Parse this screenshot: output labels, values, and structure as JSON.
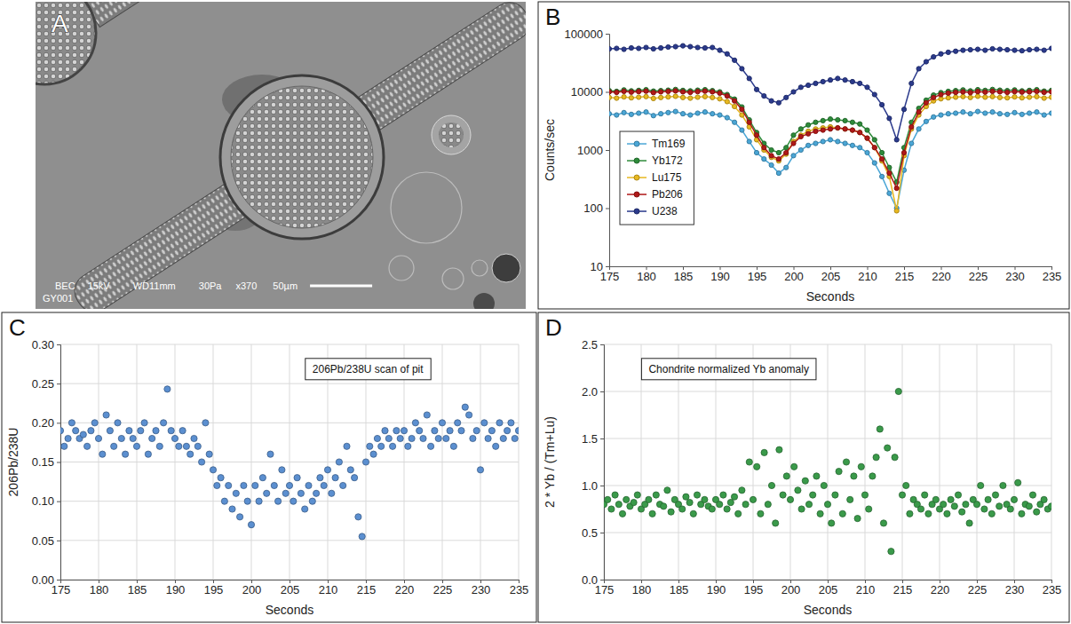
{
  "chart_data": [
    {
      "type": "image",
      "label": "A",
      "annotations": [
        "BEC",
        "15kV",
        "WD11mm",
        "30Pa",
        "x370",
        "50µm"
      ],
      "sample": "GY001"
    },
    {
      "type": "line",
      "label": "B",
      "log": "y",
      "grid": false,
      "legend": "left",
      "marker": "circle",
      "xlabel": "Seconds",
      "ylabel": "Counts/sec",
      "xlim": [
        175,
        235
      ],
      "xticks": [
        175,
        180,
        185,
        190,
        195,
        200,
        205,
        210,
        215,
        220,
        225,
        230,
        235
      ],
      "ylim": [
        10,
        100000
      ],
      "yticks": [
        10,
        100,
        1000,
        10000,
        100000
      ],
      "x": [
        175,
        176,
        177,
        178,
        179,
        180,
        181,
        182,
        183,
        184,
        185,
        186,
        187,
        188,
        189,
        190,
        191,
        192,
        193,
        194,
        195,
        196,
        197,
        198,
        199,
        200,
        201,
        202,
        203,
        204,
        205,
        206,
        207,
        208,
        209,
        210,
        211,
        212,
        213,
        214,
        215,
        216,
        217,
        218,
        219,
        220,
        221,
        222,
        223,
        224,
        225,
        226,
        227,
        228,
        229,
        230,
        231,
        232,
        233,
        234,
        235
      ],
      "series": [
        {
          "name": "Tm169",
          "color": "#4aa6d6",
          "values": [
            4200,
            4000,
            4400,
            4100,
            4300,
            4500,
            3900,
            4200,
            4400,
            4600,
            4200,
            4000,
            4300,
            4500,
            4200,
            4000,
            3600,
            3000,
            2200,
            1400,
            900,
            700,
            550,
            400,
            500,
            800,
            1000,
            1200,
            1300,
            1400,
            1500,
            1400,
            1300,
            1200,
            1100,
            900,
            600,
            350,
            180,
            100,
            450,
            1300,
            2300,
            3100,
            3700,
            4000,
            4200,
            4300,
            4500,
            4200,
            4600,
            4300,
            4500,
            4200,
            4100,
            4400,
            4100,
            4300,
            4500,
            4000,
            4300
          ]
        },
        {
          "name": "Yb172",
          "color": "#2e8b3a",
          "values": [
            10500,
            10200,
            10800,
            10400,
            10600,
            10900,
            10300,
            10500,
            10700,
            11000,
            10600,
            10400,
            10700,
            10900,
            10500,
            10000,
            9000,
            7500,
            5500,
            3300,
            2000,
            1300,
            1000,
            900,
            1100,
            1800,
            2300,
            2700,
            3000,
            3200,
            3400,
            3300,
            3200,
            3000,
            2800,
            2200,
            1500,
            900,
            500,
            280,
            1100,
            3000,
            5200,
            7200,
            8800,
            9700,
            10200,
            10500,
            10800,
            10400,
            10900,
            10600,
            11000,
            10700,
            10500,
            10800,
            10400,
            10600,
            10900,
            10300,
            10600
          ]
        },
        {
          "name": "Lu175",
          "color": "#e8b820",
          "values": [
            8000,
            7800,
            8200,
            7900,
            8100,
            8300,
            7700,
            8000,
            8200,
            8400,
            8000,
            7800,
            8100,
            8300,
            8000,
            7600,
            6800,
            5600,
            4000,
            2500,
            1500,
            1000,
            750,
            650,
            850,
            1400,
            1800,
            2100,
            2300,
            2400,
            2500,
            2400,
            2300,
            2200,
            2000,
            1600,
            1100,
            650,
            350,
            90,
            800,
            2300,
            4000,
            5600,
            7000,
            7600,
            7900,
            8100,
            8300,
            8000,
            8400,
            8100,
            8300,
            8000,
            7900,
            8200,
            7900,
            8100,
            8300,
            7800,
            8100
          ]
        },
        {
          "name": "Pb206",
          "color": "#b01818",
          "values": [
            10000,
            9800,
            10200,
            9900,
            10100,
            10300,
            9700,
            10000,
            10200,
            10400,
            10000,
            9800,
            10100,
            10300,
            10000,
            9500,
            8500,
            7000,
            5000,
            3000,
            1800,
            1100,
            800,
            700,
            900,
            1300,
            1700,
            1900,
            2100,
            2200,
            2300,
            2400,
            2300,
            2200,
            2000,
            1600,
            1100,
            700,
            400,
            220,
            900,
            2500,
            4500,
            6500,
            8000,
            9000,
            9500,
            9800,
            10000,
            9700,
            10100,
            9900,
            10200,
            10000,
            9800,
            10100,
            9900,
            10000,
            10200,
            9800,
            10000
          ]
        },
        {
          "name": "U238",
          "color": "#2b3a8c",
          "values": [
            55000,
            56000,
            54000,
            57000,
            56000,
            58000,
            55000,
            57000,
            59000,
            60000,
            62000,
            60000,
            58000,
            57000,
            58000,
            52000,
            45000,
            35000,
            25000,
            17000,
            11000,
            8500,
            7000,
            6500,
            8000,
            10000,
            12000,
            13000,
            14000,
            15000,
            16000,
            17000,
            16000,
            15000,
            14000,
            12000,
            9000,
            6000,
            3500,
            1500,
            5000,
            14000,
            25000,
            33000,
            40000,
            45000,
            48000,
            50000,
            52000,
            53000,
            54000,
            52000,
            55000,
            54000,
            53000,
            52000,
            51000,
            53000,
            54000,
            52000,
            56000
          ]
        }
      ]
    },
    {
      "type": "scatter",
      "label": "C",
      "grid": true,
      "marker": "circle",
      "color": "#5b8fd0",
      "xlabel": "Seconds",
      "ylabel": "206Pb/238U",
      "annotation": "206Pb/238U scan of pit",
      "xlim": [
        175,
        235
      ],
      "xticks": [
        175,
        180,
        185,
        190,
        195,
        200,
        205,
        210,
        215,
        220,
        225,
        230,
        235
      ],
      "ylim": [
        0,
        0.3
      ],
      "yticks": [
        {
          "value": 0,
          "label": "0.00"
        },
        0.05,
        {
          "value": 0.1,
          "label": "0.10"
        },
        0.15,
        {
          "value": 0.2,
          "label": "0.20"
        },
        0.25,
        {
          "value": 0.3,
          "label": "0.30"
        }
      ],
      "x": [
        175,
        175.5,
        176,
        176.5,
        177,
        177.5,
        178,
        178.5,
        179,
        179.5,
        180,
        180.5,
        181,
        181.5,
        182,
        182.5,
        183,
        183.5,
        184,
        184.5,
        185,
        185.5,
        186,
        186.5,
        187,
        187.5,
        188,
        188.5,
        189,
        189.5,
        190,
        190.5,
        191,
        191.5,
        192,
        192.5,
        193,
        193.5,
        194,
        194.5,
        195,
        195.5,
        196,
        196.5,
        197,
        197.5,
        198,
        198.5,
        199,
        199.5,
        200,
        200.5,
        201,
        201.5,
        202,
        202.5,
        203,
        203.5,
        204,
        204.5,
        205,
        205.5,
        206,
        206.5,
        207,
        207.5,
        208,
        208.5,
        209,
        209.5,
        210,
        210.5,
        211,
        211.5,
        212,
        212.5,
        213,
        213.5,
        214,
        214.5,
        215,
        215.5,
        216,
        216.5,
        217,
        217.5,
        218,
        218.5,
        219,
        219.5,
        220,
        220.5,
        221,
        221.5,
        222,
        222.5,
        223,
        223.5,
        224,
        224.5,
        225,
        225.5,
        226,
        226.5,
        227,
        227.5,
        228,
        228.5,
        229,
        229.5,
        230,
        230.5,
        231,
        231.5,
        232,
        232.5,
        233,
        233.5,
        234,
        234.5,
        235
      ],
      "values": [
        0.19,
        0.17,
        0.18,
        0.2,
        0.19,
        0.18,
        0.185,
        0.17,
        0.19,
        0.2,
        0.18,
        0.16,
        0.21,
        0.19,
        0.17,
        0.2,
        0.18,
        0.16,
        0.19,
        0.18,
        0.17,
        0.19,
        0.2,
        0.16,
        0.18,
        0.19,
        0.17,
        0.2,
        0.243,
        0.19,
        0.18,
        0.17,
        0.19,
        0.17,
        0.16,
        0.18,
        0.17,
        0.15,
        0.2,
        0.16,
        0.14,
        0.12,
        0.13,
        0.1,
        0.12,
        0.09,
        0.11,
        0.08,
        0.12,
        0.1,
        0.07,
        0.12,
        0.1,
        0.13,
        0.11,
        0.16,
        0.12,
        0.1,
        0.14,
        0.11,
        0.12,
        0.1,
        0.13,
        0.11,
        0.09,
        0.12,
        0.1,
        0.11,
        0.13,
        0.12,
        0.14,
        0.11,
        0.13,
        0.15,
        0.12,
        0.17,
        0.14,
        0.13,
        0.08,
        0.055,
        0.15,
        0.17,
        0.16,
        0.18,
        0.17,
        0.19,
        0.18,
        0.17,
        0.19,
        0.18,
        0.19,
        0.17,
        0.18,
        0.2,
        0.19,
        0.18,
        0.21,
        0.17,
        0.19,
        0.18,
        0.2,
        0.18,
        0.19,
        0.17,
        0.2,
        0.19,
        0.22,
        0.21,
        0.18,
        0.19,
        0.14,
        0.2,
        0.18,
        0.19,
        0.17,
        0.2,
        0.18,
        0.19,
        0.2,
        0.18,
        0.19
      ]
    },
    {
      "type": "scatter",
      "label": "D",
      "grid": true,
      "marker": "circle",
      "color": "#3a9a4a",
      "xlabel": "Seconds",
      "ylabel": "2 * Yb / (Tm+Lu)",
      "annotation": "Chondrite normalized Yb anomaly",
      "xlim": [
        175,
        235
      ],
      "xticks": [
        175,
        180,
        185,
        190,
        195,
        200,
        205,
        210,
        215,
        220,
        225,
        230,
        235
      ],
      "ylim": [
        0,
        2.5
      ],
      "yticks": [
        {
          "value": 0,
          "label": "0.0"
        },
        0.5,
        {
          "value": 1,
          "label": "1.0"
        },
        1.5,
        {
          "value": 2,
          "label": "2.0"
        },
        2.5
      ],
      "x": [
        175,
        175.5,
        176,
        176.5,
        177,
        177.5,
        178,
        178.5,
        179,
        179.5,
        180,
        180.5,
        181,
        181.5,
        182,
        182.5,
        183,
        183.5,
        184,
        184.5,
        185,
        185.5,
        186,
        186.5,
        187,
        187.5,
        188,
        188.5,
        189,
        189.5,
        190,
        190.5,
        191,
        191.5,
        192,
        192.5,
        193,
        193.5,
        194,
        194.5,
        195,
        195.5,
        196,
        196.5,
        197,
        197.5,
        198,
        198.5,
        199,
        199.5,
        200,
        200.5,
        201,
        201.5,
        202,
        202.5,
        203,
        203.5,
        204,
        204.5,
        205,
        205.5,
        206,
        206.5,
        207,
        207.5,
        208,
        208.5,
        209,
        209.5,
        210,
        210.5,
        211,
        211.5,
        212,
        212.5,
        213,
        213.5,
        214,
        214.5,
        215,
        215.5,
        216,
        216.5,
        217,
        217.5,
        218,
        218.5,
        219,
        219.5,
        220,
        220.5,
        221,
        221.5,
        222,
        222.5,
        223,
        223.5,
        224,
        224.5,
        225,
        225.5,
        226,
        226.5,
        227,
        227.5,
        228,
        228.5,
        229,
        229.5,
        230,
        230.5,
        231,
        231.5,
        232,
        232.5,
        233,
        233.5,
        234,
        234.5,
        235
      ],
      "values": [
        0.8,
        0.85,
        0.75,
        0.9,
        0.8,
        0.7,
        0.85,
        0.78,
        0.82,
        0.9,
        0.75,
        0.8,
        0.85,
        0.7,
        0.9,
        0.8,
        0.78,
        0.95,
        0.72,
        0.85,
        0.8,
        0.75,
        0.88,
        0.82,
        0.7,
        0.9,
        0.8,
        0.85,
        0.78,
        0.75,
        0.85,
        0.8,
        0.9,
        0.75,
        0.82,
        0.88,
        0.7,
        0.95,
        0.8,
        1.25,
        0.85,
        1.2,
        0.7,
        1.35,
        0.8,
        1.0,
        0.6,
        1.38,
        0.9,
        1.1,
        0.85,
        1.2,
        0.95,
        0.75,
        1.05,
        0.8,
        0.9,
        1.1,
        0.7,
        1.0,
        0.8,
        0.6,
        0.9,
        1.15,
        0.7,
        1.25,
        0.85,
        1.1,
        0.65,
        1.2,
        0.9,
        0.75,
        1.1,
        1.3,
        1.6,
        0.6,
        1.4,
        0.3,
        1.3,
        2.0,
        0.9,
        1.0,
        0.7,
        0.85,
        0.8,
        0.75,
        0.9,
        0.7,
        0.8,
        0.85,
        0.75,
        0.8,
        0.7,
        0.85,
        0.78,
        0.9,
        0.72,
        0.8,
        0.6,
        0.85,
        0.8,
        1.0,
        0.75,
        0.85,
        0.7,
        0.9,
        0.78,
        1.0,
        0.8,
        0.75,
        0.85,
        1.03,
        0.7,
        0.8,
        0.78,
        0.9,
        0.72,
        0.8,
        0.85,
        0.75,
        0.78
      ]
    }
  ]
}
